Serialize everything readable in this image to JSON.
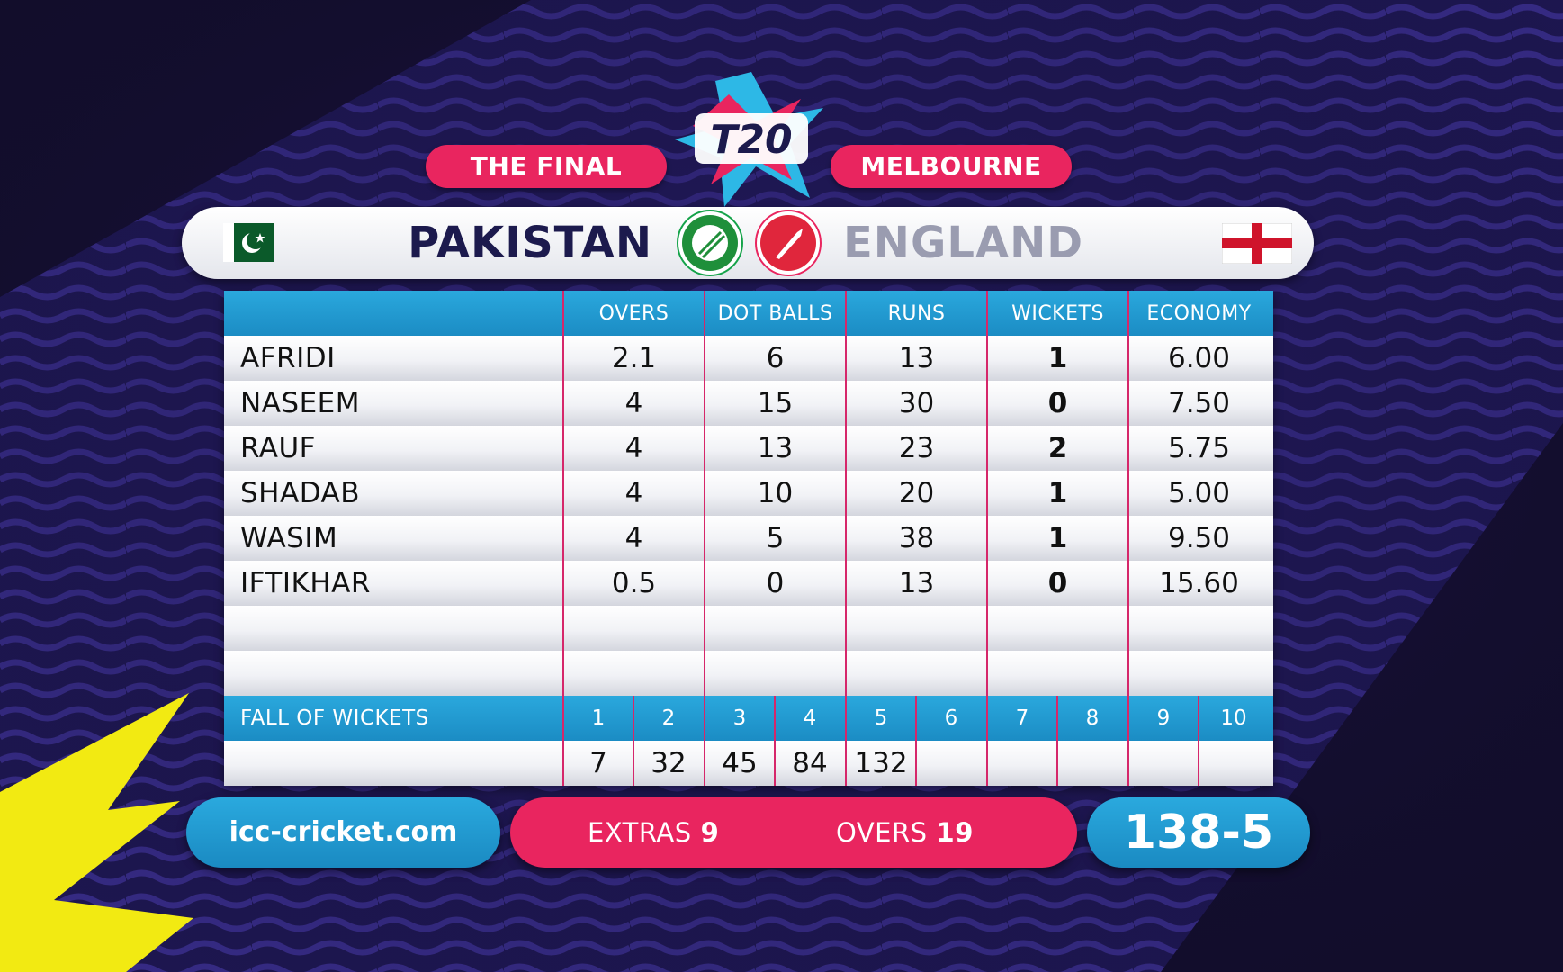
{
  "header": {
    "left_pill": "THE FINAL",
    "right_pill": "MELBOURNE",
    "logo_text": "T20"
  },
  "teams": {
    "bowling": "PAKISTAN",
    "batting": "ENGLAND",
    "bowling_flag": "pakistan-flag",
    "batting_flag": "england-flag"
  },
  "table": {
    "columns": [
      "OVERS",
      "DOT BALLS",
      "RUNS",
      "WICKETS",
      "ECONOMY"
    ],
    "rows": [
      {
        "name": "AFRIDI",
        "overs": "2.1",
        "dots": "6",
        "runs": "13",
        "wickets": "1",
        "economy": "6.00"
      },
      {
        "name": "NASEEM",
        "overs": "4",
        "dots": "15",
        "runs": "30",
        "wickets": "0",
        "economy": "7.50"
      },
      {
        "name": "RAUF",
        "overs": "4",
        "dots": "13",
        "runs": "23",
        "wickets": "2",
        "economy": "5.75"
      },
      {
        "name": "SHADAB",
        "overs": "4",
        "dots": "10",
        "runs": "20",
        "wickets": "1",
        "economy": "5.00"
      },
      {
        "name": "WASIM",
        "overs": "4",
        "dots": "5",
        "runs": "38",
        "wickets": "1",
        "economy": "9.50"
      },
      {
        "name": "IFTIKHAR",
        "overs": "0.5",
        "dots": "0",
        "runs": "13",
        "wickets": "0",
        "economy": "15.60"
      },
      {
        "name": "",
        "overs": "",
        "dots": "",
        "runs": "",
        "wickets": "",
        "economy": ""
      },
      {
        "name": "",
        "overs": "",
        "dots": "",
        "runs": "",
        "wickets": "",
        "economy": ""
      }
    ],
    "fall_of_wickets": {
      "label": "FALL OF WICKETS",
      "numbers": [
        "1",
        "2",
        "3",
        "4",
        "5",
        "6",
        "7",
        "8",
        "9",
        "10"
      ],
      "values": [
        "7",
        "32",
        "45",
        "84",
        "132",
        "",
        "",
        "",
        "",
        ""
      ]
    }
  },
  "footer": {
    "website": "icc-cricket.com",
    "extras_label": "EXTRAS",
    "extras_value": "9",
    "overs_label": "OVERS",
    "overs_value": "19",
    "score": "138-5"
  },
  "colors": {
    "pink": "#e9255f",
    "blue": "#1f9bd3",
    "navy": "#1c1a4d",
    "yellow": "#f2ea12"
  }
}
